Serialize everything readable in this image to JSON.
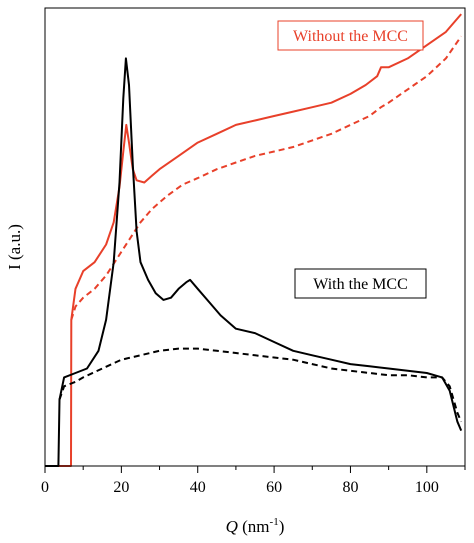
{
  "chart_data": {
    "type": "line",
    "xlabel": "Q (nm⁻¹)",
    "xlabel_var": "Q",
    "xlabel_unit_open": " (nm",
    "xlabel_unit_sup": "-1",
    "xlabel_unit_close": ")",
    "ylabel": "I (a.u.)",
    "xlim": [
      0,
      110
    ],
    "ylim": [
      0,
      1
    ],
    "xticks": [
      0,
      20,
      40,
      60,
      80,
      100
    ],
    "grid": false,
    "legend": [
      {
        "label": "Without the MCC",
        "color": "#e8402a",
        "position": "top-right"
      },
      {
        "label": "With the MCC",
        "color": "#000000",
        "position": "center-right"
      }
    ],
    "series": [
      {
        "color": "#e8402a",
        "style": "solid",
        "points": [
          [
            0,
            0
          ],
          [
            6.8,
            0
          ],
          [
            6.9,
            0.33
          ],
          [
            8,
            0.4
          ],
          [
            10,
            0.44
          ],
          [
            13,
            0.46
          ],
          [
            16,
            0.5
          ],
          [
            18,
            0.55
          ],
          [
            19.5,
            0.63
          ],
          [
            20.5,
            0.71
          ],
          [
            21.3,
            0.77
          ],
          [
            22,
            0.73
          ],
          [
            23,
            0.67
          ],
          [
            24,
            0.645
          ],
          [
            26,
            0.64
          ],
          [
            28,
            0.655
          ],
          [
            30,
            0.67
          ],
          [
            35,
            0.7
          ],
          [
            40,
            0.73
          ],
          [
            45,
            0.75
          ],
          [
            50,
            0.77
          ],
          [
            55,
            0.78
          ],
          [
            60,
            0.79
          ],
          [
            65,
            0.8
          ],
          [
            70,
            0.81
          ],
          [
            75,
            0.82
          ],
          [
            80,
            0.84
          ],
          [
            84,
            0.86
          ],
          [
            87,
            0.88
          ],
          [
            88,
            0.9
          ],
          [
            90,
            0.9
          ],
          [
            95,
            0.92
          ],
          [
            100,
            0.95
          ],
          [
            105,
            0.98
          ],
          [
            109,
            1.02
          ]
        ]
      },
      {
        "color": "#e8402a",
        "style": "dashed",
        "points": [
          [
            6.9,
            0.33
          ],
          [
            8,
            0.36
          ],
          [
            10,
            0.38
          ],
          [
            13,
            0.4
          ],
          [
            16,
            0.43
          ],
          [
            19,
            0.47
          ],
          [
            22,
            0.51
          ],
          [
            25,
            0.55
          ],
          [
            28,
            0.58
          ],
          [
            32,
            0.61
          ],
          [
            36,
            0.635
          ],
          [
            40,
            0.65
          ],
          [
            45,
            0.67
          ],
          [
            50,
            0.685
          ],
          [
            55,
            0.7
          ],
          [
            60,
            0.71
          ],
          [
            65,
            0.72
          ],
          [
            70,
            0.735
          ],
          [
            75,
            0.75
          ],
          [
            80,
            0.77
          ],
          [
            85,
            0.79
          ],
          [
            88,
            0.81
          ],
          [
            90,
            0.82
          ],
          [
            95,
            0.85
          ],
          [
            100,
            0.88
          ],
          [
            105,
            0.92
          ],
          [
            109,
            0.97
          ]
        ]
      },
      {
        "color": "#000000",
        "style": "solid",
        "points": [
          [
            0,
            0
          ],
          [
            3.5,
            0
          ],
          [
            3.8,
            0.15
          ],
          [
            5,
            0.2
          ],
          [
            8,
            0.21
          ],
          [
            11,
            0.22
          ],
          [
            14,
            0.26
          ],
          [
            16,
            0.33
          ],
          [
            18,
            0.46
          ],
          [
            19.5,
            0.64
          ],
          [
            20.5,
            0.83
          ],
          [
            21.2,
            0.92
          ],
          [
            22,
            0.86
          ],
          [
            23,
            0.68
          ],
          [
            24,
            0.53
          ],
          [
            25,
            0.46
          ],
          [
            27,
            0.42
          ],
          [
            29,
            0.39
          ],
          [
            31,
            0.375
          ],
          [
            33,
            0.38
          ],
          [
            35,
            0.4
          ],
          [
            37,
            0.415
          ],
          [
            38,
            0.42
          ],
          [
            40,
            0.4
          ],
          [
            43,
            0.37
          ],
          [
            46,
            0.34
          ],
          [
            50,
            0.31
          ],
          [
            55,
            0.3
          ],
          [
            60,
            0.28
          ],
          [
            65,
            0.26
          ],
          [
            70,
            0.25
          ],
          [
            75,
            0.24
          ],
          [
            80,
            0.23
          ],
          [
            85,
            0.225
          ],
          [
            90,
            0.22
          ],
          [
            95,
            0.215
          ],
          [
            100,
            0.21
          ],
          [
            104,
            0.2
          ],
          [
            106,
            0.17
          ],
          [
            108,
            0.1
          ],
          [
            109,
            0.08
          ]
        ]
      },
      {
        "color": "#000000",
        "style": "dashed",
        "points": [
          [
            3.8,
            0.15
          ],
          [
            5,
            0.18
          ],
          [
            8,
            0.19
          ],
          [
            10,
            0.2
          ],
          [
            15,
            0.22
          ],
          [
            20,
            0.24
          ],
          [
            25,
            0.25
          ],
          [
            30,
            0.26
          ],
          [
            35,
            0.265
          ],
          [
            40,
            0.265
          ],
          [
            45,
            0.26
          ],
          [
            50,
            0.255
          ],
          [
            55,
            0.25
          ],
          [
            60,
            0.245
          ],
          [
            65,
            0.24
          ],
          [
            70,
            0.23
          ],
          [
            75,
            0.22
          ],
          [
            80,
            0.215
          ],
          [
            85,
            0.21
          ],
          [
            90,
            0.205
          ],
          [
            95,
            0.205
          ],
          [
            100,
            0.2
          ],
          [
            104,
            0.2
          ],
          [
            106,
            0.18
          ],
          [
            108,
            0.12
          ],
          [
            109,
            0.1
          ]
        ]
      }
    ]
  }
}
